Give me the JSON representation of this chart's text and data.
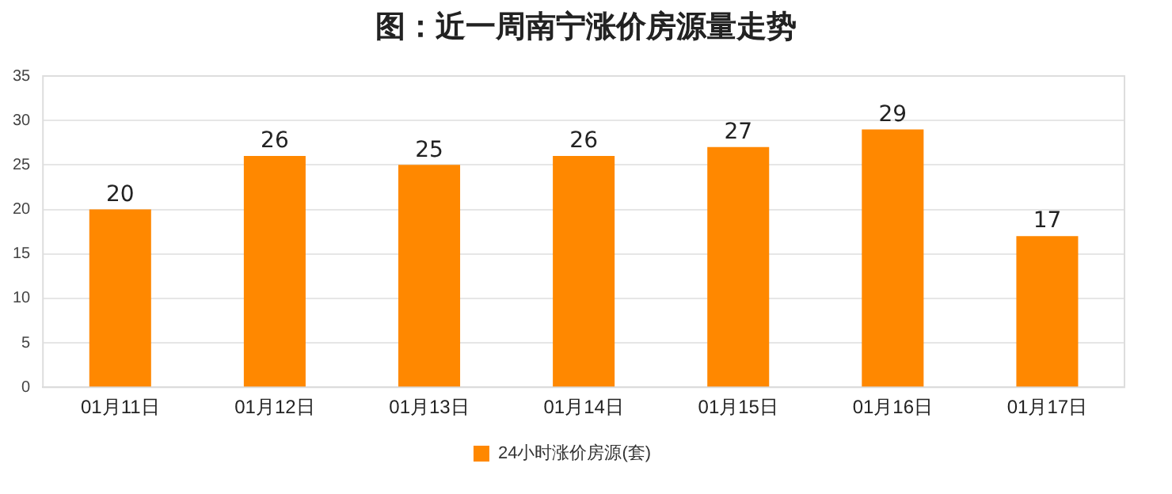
{
  "chart_data": {
    "type": "bar",
    "title": "图：近一周南宁涨价房源量走势",
    "categories": [
      "01月11日",
      "01月12日",
      "01月13日",
      "01月14日",
      "01月15日",
      "01月16日",
      "01月17日"
    ],
    "series": [
      {
        "name": "24小时涨价房源(套)",
        "color": "#ff8800",
        "values": [
          20,
          26,
          25,
          26,
          27,
          29,
          17
        ]
      }
    ],
    "ylim": [
      0,
      35
    ],
    "yticks": [
      0,
      5,
      10,
      15,
      20,
      25,
      30,
      35
    ],
    "grid": "y",
    "legend": "bottom",
    "data_labels": true
  }
}
